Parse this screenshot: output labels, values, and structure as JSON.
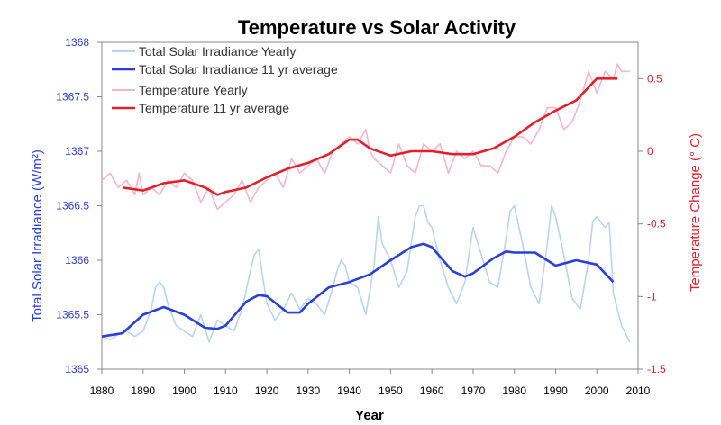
{
  "chart_data": {
    "type": "line",
    "title": "Temperature vs Solar Activity",
    "xlabel": "Year",
    "ylabel": "Total Solar Irradiance (W/m²)",
    "y2label": "Temperature Change (° C)",
    "xlim": [
      1880,
      2010
    ],
    "ylim": [
      1365,
      1368
    ],
    "y2lim": [
      -1.5,
      0.75
    ],
    "x_ticks": [
      1880,
      1890,
      1900,
      1910,
      1920,
      1930,
      1940,
      1950,
      1960,
      1970,
      1980,
      1990,
      2000,
      2010
    ],
    "y_ticks": [
      1365,
      1365.5,
      1366,
      1366.5,
      1367,
      1367.5,
      1368
    ],
    "y2_ticks": [
      -1.5,
      -1,
      -0.5,
      0,
      0.5
    ],
    "legend_position": "top-left",
    "grid": false,
    "colors": {
      "tsi_yearly": "#b8d4f2",
      "tsi_avg": "#2a3fd8",
      "temp_yearly": "#f4b6c8",
      "temp_avg": "#e0202a",
      "left_axis": "#2a3fd8",
      "right_axis": "#e0202a"
    },
    "series": [
      {
        "name": "Total Solar Irradiance Yearly",
        "axis": "left",
        "x": [
          1880,
          1882,
          1884,
          1886,
          1888,
          1890,
          1892,
          1893,
          1894,
          1895,
          1896,
          1898,
          1900,
          1902,
          1904,
          1906,
          1908,
          1910,
          1912,
          1914,
          1916,
          1917,
          1918,
          1919,
          1920,
          1922,
          1924,
          1926,
          1928,
          1930,
          1932,
          1934,
          1936,
          1937,
          1938,
          1939,
          1940,
          1942,
          1944,
          1946,
          1947,
          1948,
          1950,
          1952,
          1954,
          1956,
          1957,
          1958,
          1959,
          1960,
          1962,
          1964,
          1966,
          1968,
          1969,
          1970,
          1972,
          1974,
          1976,
          1978,
          1979,
          1980,
          1982,
          1984,
          1986,
          1988,
          1989,
          1990,
          1992,
          1994,
          1996,
          1998,
          1999,
          2000,
          2002,
          2003,
          2004,
          2006,
          2008
        ],
        "values": [
          1365.3,
          1365.27,
          1365.32,
          1365.35,
          1365.3,
          1365.35,
          1365.55,
          1365.75,
          1365.8,
          1365.75,
          1365.6,
          1365.4,
          1365.35,
          1365.3,
          1365.5,
          1365.25,
          1365.45,
          1365.4,
          1365.35,
          1365.55,
          1365.9,
          1366.05,
          1366.1,
          1365.85,
          1365.6,
          1365.45,
          1365.55,
          1365.7,
          1365.55,
          1365.65,
          1365.6,
          1365.5,
          1365.75,
          1365.9,
          1366.0,
          1365.95,
          1365.8,
          1365.75,
          1365.5,
          1365.95,
          1366.4,
          1366.15,
          1366.0,
          1365.75,
          1365.9,
          1366.4,
          1366.5,
          1366.5,
          1366.35,
          1366.3,
          1366.0,
          1365.75,
          1365.6,
          1365.8,
          1366.05,
          1366.3,
          1366.05,
          1365.8,
          1365.75,
          1366.2,
          1366.45,
          1366.5,
          1366.15,
          1365.75,
          1365.6,
          1366.15,
          1366.5,
          1366.4,
          1366.05,
          1365.65,
          1365.55,
          1366.0,
          1366.35,
          1366.4,
          1366.3,
          1366.35,
          1365.7,
          1365.4,
          1365.25
        ]
      },
      {
        "name": "Total Solar Irradiance 11 yr average",
        "axis": "left",
        "x": [
          1880,
          1885,
          1890,
          1895,
          1900,
          1905,
          1908,
          1910,
          1915,
          1918,
          1920,
          1925,
          1928,
          1930,
          1935,
          1940,
          1945,
          1950,
          1955,
          1958,
          1960,
          1965,
          1968,
          1970,
          1975,
          1978,
          1980,
          1985,
          1990,
          1995,
          2000,
          2004
        ],
        "values": [
          1365.3,
          1365.33,
          1365.5,
          1365.57,
          1365.5,
          1365.38,
          1365.37,
          1365.4,
          1365.62,
          1365.68,
          1365.67,
          1365.52,
          1365.52,
          1365.6,
          1365.75,
          1365.8,
          1365.87,
          1366.0,
          1366.12,
          1366.15,
          1366.12,
          1365.9,
          1365.85,
          1365.88,
          1366.02,
          1366.08,
          1366.07,
          1366.07,
          1365.95,
          1366.0,
          1365.96,
          1365.8
        ]
      },
      {
        "name": "Temperature Yearly",
        "axis": "right",
        "x": [
          1880,
          1882,
          1884,
          1886,
          1888,
          1889,
          1890,
          1892,
          1894,
          1896,
          1898,
          1900,
          1902,
          1904,
          1906,
          1908,
          1910,
          1912,
          1914,
          1916,
          1918,
          1920,
          1922,
          1924,
          1926,
          1928,
          1930,
          1932,
          1934,
          1936,
          1938,
          1940,
          1942,
          1944,
          1945,
          1946,
          1948,
          1950,
          1952,
          1954,
          1956,
          1958,
          1960,
          1962,
          1964,
          1966,
          1968,
          1970,
          1972,
          1974,
          1976,
          1978,
          1980,
          1982,
          1984,
          1986,
          1988,
          1990,
          1992,
          1994,
          1996,
          1998,
          2000,
          2002,
          2004,
          2005,
          2006,
          2008
        ],
        "values": [
          -0.2,
          -0.15,
          -0.25,
          -0.2,
          -0.3,
          -0.15,
          -0.3,
          -0.25,
          -0.3,
          -0.2,
          -0.25,
          -0.15,
          -0.2,
          -0.35,
          -0.25,
          -0.4,
          -0.35,
          -0.3,
          -0.2,
          -0.35,
          -0.25,
          -0.2,
          -0.15,
          -0.25,
          -0.05,
          -0.15,
          -0.1,
          -0.05,
          -0.15,
          0.0,
          0.05,
          0.1,
          0.05,
          0.15,
          0.0,
          -0.05,
          -0.1,
          -0.15,
          0.05,
          -0.1,
          -0.15,
          0.05,
          0.0,
          0.05,
          -0.15,
          0.0,
          -0.05,
          0.0,
          -0.1,
          -0.1,
          -0.15,
          0.0,
          0.1,
          0.1,
          0.05,
          0.15,
          0.3,
          0.3,
          0.15,
          0.2,
          0.35,
          0.55,
          0.4,
          0.55,
          0.5,
          0.6,
          0.55,
          0.55
        ]
      },
      {
        "name": "Temperature 11 yr average",
        "axis": "right",
        "x": [
          1885,
          1890,
          1895,
          1900,
          1905,
          1908,
          1910,
          1915,
          1920,
          1925,
          1930,
          1935,
          1940,
          1942,
          1945,
          1950,
          1955,
          1960,
          1965,
          1970,
          1975,
          1980,
          1985,
          1990,
          1995,
          2000,
          2005
        ],
        "values": [
          -0.25,
          -0.27,
          -0.22,
          -0.2,
          -0.25,
          -0.3,
          -0.28,
          -0.25,
          -0.18,
          -0.12,
          -0.08,
          -0.02,
          0.08,
          0.08,
          0.02,
          -0.03,
          0.0,
          0.0,
          -0.02,
          -0.02,
          0.02,
          0.1,
          0.2,
          0.28,
          0.35,
          0.5,
          0.5
        ]
      }
    ]
  }
}
